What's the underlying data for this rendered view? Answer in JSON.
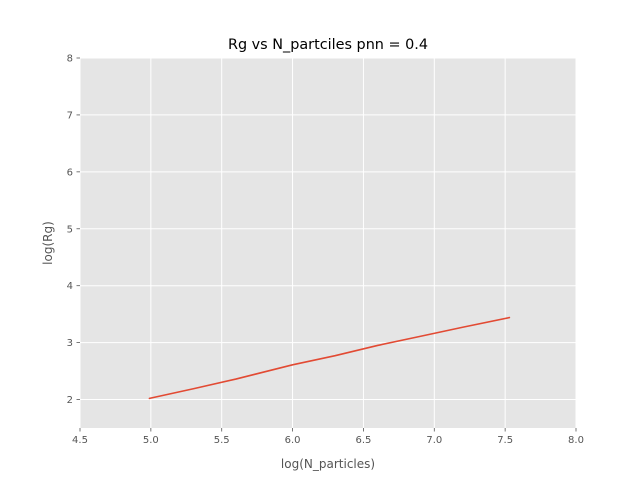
{
  "chart_data": {
    "type": "line",
    "title": "Rg vs N_partciles pnn = 0.4",
    "xlabel": "log(N_particles)",
    "ylabel": "log(Rg)",
    "xlim": [
      4.5,
      8.0
    ],
    "ylim": [
      1.5,
      8.0
    ],
    "xticks": [
      "4.5",
      "5.0",
      "5.5",
      "6.0",
      "6.5",
      "7.0",
      "7.5",
      "8.0"
    ],
    "yticks": [
      "2",
      "3",
      "4",
      "5",
      "6",
      "7",
      "8"
    ],
    "grid": true,
    "legend": "none",
    "style": {
      "background_color": "#e5e5e5",
      "grid_color": "#ffffff",
      "line_color": "#e24a33"
    },
    "series": [
      {
        "x": [
          4.99,
          5.3,
          5.6,
          6.0,
          6.3,
          6.6,
          6.9,
          7.2,
          7.53
        ],
        "y": [
          2.02,
          2.19,
          2.36,
          2.61,
          2.77,
          2.95,
          3.11,
          3.27,
          3.44
        ]
      }
    ]
  }
}
